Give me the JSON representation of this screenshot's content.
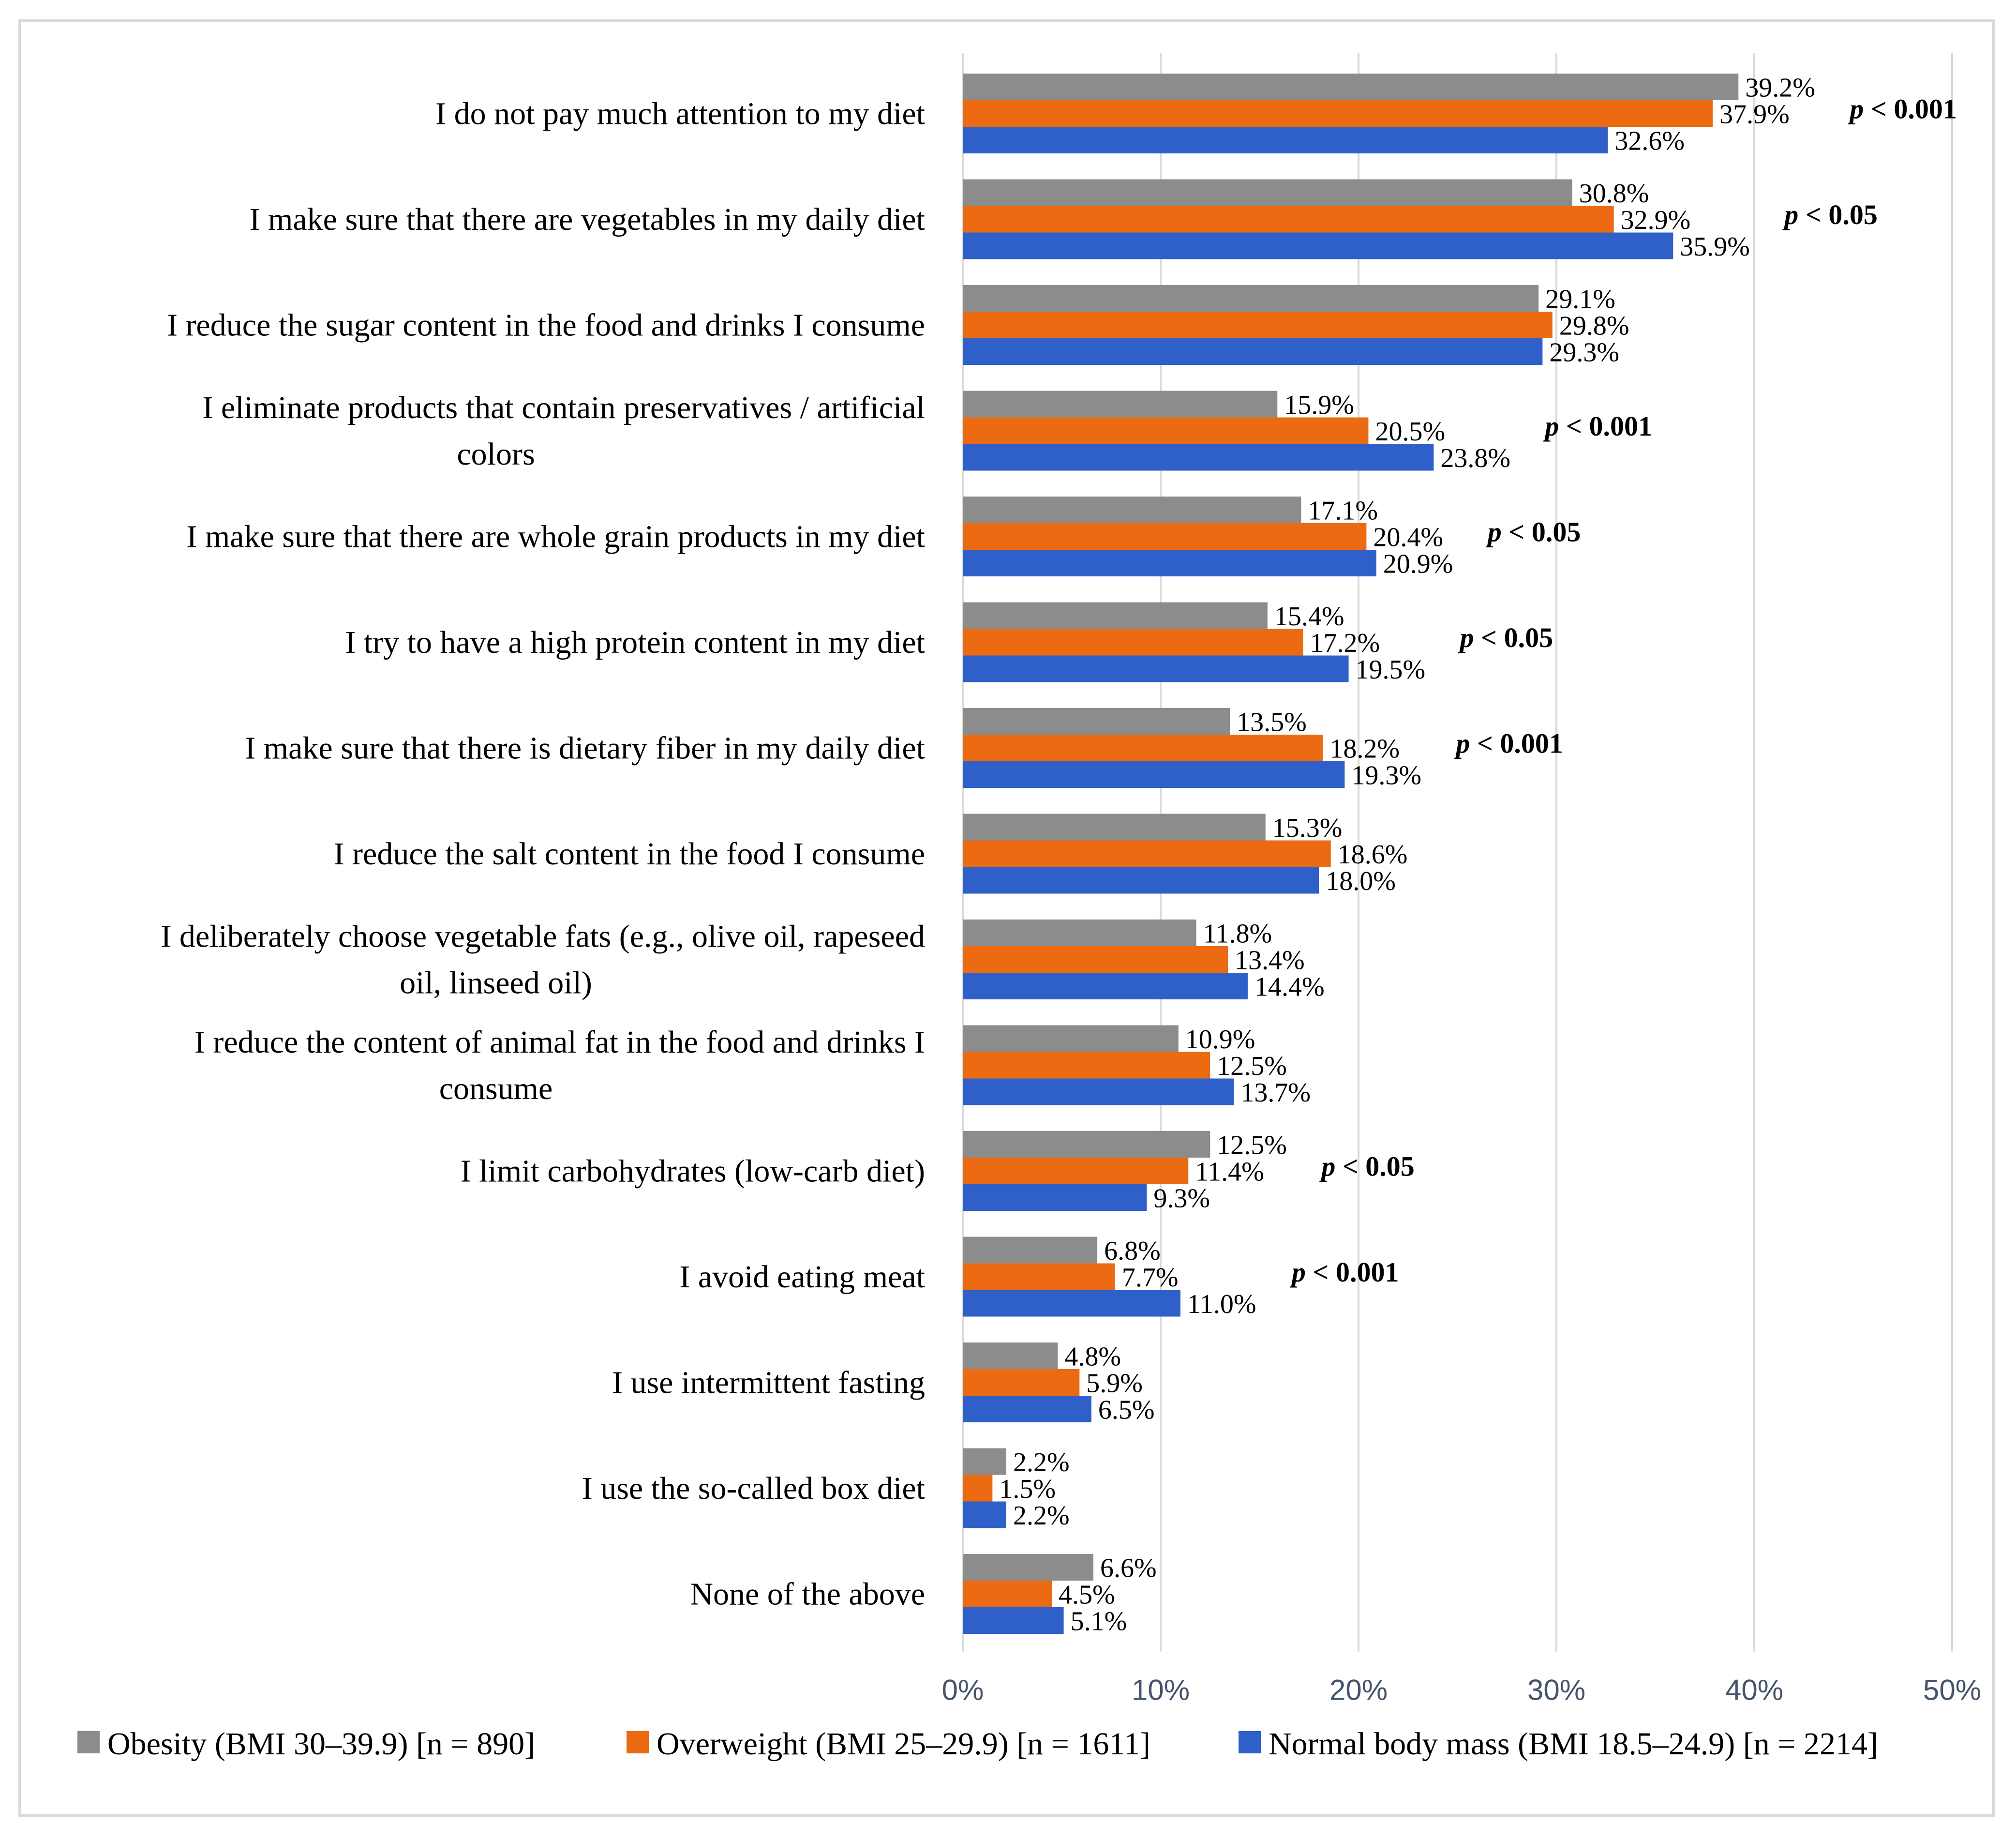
{
  "chart_data": {
    "type": "bar",
    "orientation": "horizontal",
    "title": "",
    "xlabel": "",
    "ylabel": "",
    "xlim": [
      0,
      50
    ],
    "x_ticks": [
      "0%",
      "10%",
      "20%",
      "30%",
      "40%",
      "50%"
    ],
    "grid": true,
    "legend_position": "bottom",
    "categories": [
      [
        "I do not pay much attention to my diet"
      ],
      [
        "I make sure that there are vegetables in my daily diet"
      ],
      [
        "I reduce the sugar content in the food and drinks I consume"
      ],
      [
        "I eliminate products that contain preservatives / artificial",
        "colors"
      ],
      [
        "I make sure that there are whole grain products in my diet"
      ],
      [
        "I try to have a high protein content in my diet"
      ],
      [
        "I make sure that there is dietary fiber in my daily diet"
      ],
      [
        "I reduce the salt content in the food I consume"
      ],
      [
        "I deliberately choose vegetable fats (e.g., olive oil, rapeseed",
        "oil, linseed oil)"
      ],
      [
        "I reduce the content of animal fat in the food and drinks I",
        "consume"
      ],
      [
        "I limit carbohydrates (low-carb diet)"
      ],
      [
        "I avoid eating meat"
      ],
      [
        "I use intermittent fasting"
      ],
      [
        "I use the so-called box diet"
      ],
      [
        "None of the above"
      ]
    ],
    "series": [
      {
        "name": "Obesity (BMI 30–39.9) [n = 890]",
        "color": "#8c8c8c",
        "values": [
          39.2,
          30.8,
          29.1,
          15.9,
          17.1,
          15.4,
          13.5,
          15.3,
          11.8,
          10.9,
          12.5,
          6.8,
          4.8,
          2.2,
          6.6
        ],
        "labels": [
          "39.2%",
          "30.8%",
          "29.1%",
          "15.9%",
          "17.1%",
          "15.4%",
          "13.5%",
          "15.3%",
          "11.8%",
          "10.9%",
          "12.5%",
          "6.8%",
          "4.8%",
          "2.2%",
          "6.6%"
        ]
      },
      {
        "name": "Overweight (BMI 25–29.9) [n = 1611]",
        "color": "#ec6b12",
        "values": [
          37.9,
          32.9,
          29.8,
          20.5,
          20.4,
          17.2,
          18.2,
          18.6,
          13.4,
          12.5,
          11.4,
          7.7,
          5.9,
          1.5,
          4.5
        ],
        "labels": [
          "37.9%",
          "32.9%",
          "29.8%",
          "20.5%",
          "20.4%",
          "17.2%",
          "18.2%",
          "18.6%",
          "13.4%",
          "12.5%",
          "11.4%",
          "7.7%",
          "5.9%",
          "1.5%",
          "4.5%"
        ]
      },
      {
        "name": "Normal body mass (BMI 18.5–24.9) [n = 2214]",
        "color": "#2f5fc8",
        "values": [
          32.6,
          35.9,
          29.3,
          23.8,
          20.9,
          19.5,
          19.3,
          18.0,
          14.4,
          13.7,
          9.3,
          11.0,
          6.5,
          2.2,
          5.1
        ],
        "labels": [
          "32.6%",
          "35.9%",
          "29.3%",
          "23.8%",
          "20.9%",
          "19.5%",
          "19.3%",
          "18.0%",
          "14.4%",
          "13.7%",
          "9.3%",
          "11.0%",
          "6.5%",
          "2.2%",
          "5.1%"
        ]
      }
    ],
    "annotations": [
      {
        "category_index": 0,
        "p": "p",
        "text": " < 0.001"
      },
      {
        "category_index": 1,
        "p": "p",
        "text": " < 0.05"
      },
      {
        "category_index": 3,
        "p": "p",
        "text": " < 0.001"
      },
      {
        "category_index": 4,
        "p": "p",
        "text": " < 0.05"
      },
      {
        "category_index": 5,
        "p": "p",
        "text": " < 0.05"
      },
      {
        "category_index": 6,
        "p": "p",
        "text": " < 0.001"
      },
      {
        "category_index": 10,
        "p": "p",
        "text": " < 0.05"
      },
      {
        "category_index": 11,
        "p": "p",
        "text": " < 0.001"
      }
    ]
  }
}
